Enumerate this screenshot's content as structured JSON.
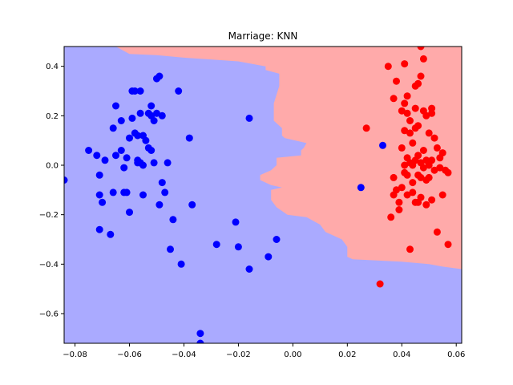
{
  "chart_data": {
    "type": "scatter",
    "title": "Marriage: KNN",
    "xlabel": "",
    "ylabel": "",
    "xlim": [
      -0.084,
      0.062
    ],
    "ylim": [
      -0.72,
      0.48
    ],
    "x_ticks": [
      -0.08,
      -0.06,
      -0.04,
      -0.02,
      0.0,
      0.02,
      0.04,
      0.06
    ],
    "x_tick_labels": [
      "−0.08",
      "−0.06",
      "−0.04",
      "−0.02",
      "0.00",
      "0.02",
      "0.04",
      "0.06"
    ],
    "y_ticks": [
      0.4,
      0.2,
      0.0,
      -0.2,
      -0.4,
      -0.6
    ],
    "y_tick_labels": [
      "0.4",
      "0.2",
      "0.0",
      "−0.2",
      "−0.4",
      "−0.6"
    ],
    "grid": false,
    "legend": "none",
    "colors": {
      "region_blue": "#aaaaff",
      "region_red": "#ffaaaa",
      "point_blue": "#0000ff",
      "point_red": "#ff0000"
    },
    "decision_boundary": [
      [
        -0.065,
        0.48
      ],
      [
        -0.06,
        0.45
      ],
      [
        -0.05,
        0.445
      ],
      [
        -0.04,
        0.435
      ],
      [
        -0.02,
        0.42
      ],
      [
        -0.015,
        0.41
      ],
      [
        -0.01,
        0.4
      ],
      [
        -0.01,
        0.385
      ],
      [
        -0.005,
        0.37
      ],
      [
        -0.005,
        0.32
      ],
      [
        -0.007,
        0.25
      ],
      [
        -0.007,
        0.18
      ],
      [
        -0.004,
        0.15
      ],
      [
        -0.004,
        0.12
      ],
      [
        -0.003,
        0.11
      ],
      [
        0.005,
        0.09
      ],
      [
        0.004,
        0.07
      ],
      [
        0.003,
        0.06
      ],
      [
        0.003,
        0.04
      ],
      [
        -0.006,
        0.03
      ],
      [
        -0.006,
        0.0
      ],
      [
        -0.008,
        -0.02
      ],
      [
        -0.012,
        -0.04
      ],
      [
        -0.012,
        -0.06
      ],
      [
        -0.008,
        -0.08
      ],
      [
        -0.004,
        -0.09
      ],
      [
        -0.008,
        -0.1
      ],
      [
        -0.008,
        -0.14
      ],
      [
        -0.006,
        -0.17
      ],
      [
        -0.002,
        -0.2
      ],
      [
        0.005,
        -0.21
      ],
      [
        0.01,
        -0.24
      ],
      [
        0.012,
        -0.27
      ],
      [
        0.014,
        -0.28
      ],
      [
        0.018,
        -0.3
      ],
      [
        0.02,
        -0.33
      ],
      [
        0.02,
        -0.37
      ],
      [
        0.022,
        -0.38
      ],
      [
        0.04,
        -0.39
      ],
      [
        0.05,
        -0.4
      ],
      [
        0.055,
        -0.41
      ],
      [
        0.062,
        -0.42
      ]
    ],
    "series": [
      {
        "points": [
          [
            -0.084,
            -0.06
          ],
          [
            -0.075,
            0.06
          ],
          [
            -0.072,
            0.04
          ],
          [
            -0.071,
            -0.04
          ],
          [
            -0.071,
            -0.12
          ],
          [
            -0.071,
            -0.26
          ],
          [
            -0.07,
            -0.15
          ],
          [
            -0.069,
            0.02
          ],
          [
            -0.067,
            -0.28
          ],
          [
            -0.066,
            0.15
          ],
          [
            -0.066,
            -0.11
          ],
          [
            -0.065,
            0.24
          ],
          [
            -0.065,
            0.04
          ],
          [
            -0.063,
            0.18
          ],
          [
            -0.063,
            0.06
          ],
          [
            -0.062,
            -0.01
          ],
          [
            -0.062,
            -0.11
          ],
          [
            -0.061,
            -0.11
          ],
          [
            -0.061,
            0.03
          ],
          [
            -0.06,
            0.11
          ],
          [
            -0.06,
            -0.19
          ],
          [
            -0.059,
            0.19
          ],
          [
            -0.059,
            0.3
          ],
          [
            -0.058,
            0.3
          ],
          [
            -0.058,
            0.13
          ],
          [
            -0.057,
            0.12
          ],
          [
            -0.057,
            0.02
          ],
          [
            -0.057,
            0.01
          ],
          [
            -0.056,
            0.3
          ],
          [
            -0.056,
            0.21
          ],
          [
            -0.056,
            0.01
          ],
          [
            -0.055,
            0.12
          ],
          [
            -0.055,
            0.0
          ],
          [
            -0.055,
            -0.12
          ],
          [
            -0.054,
            0.1
          ],
          [
            -0.053,
            0.21
          ],
          [
            -0.053,
            0.07
          ],
          [
            -0.052,
            0.24
          ],
          [
            -0.052,
            0.2
          ],
          [
            -0.052,
            0.06
          ],
          [
            -0.051,
            0.18
          ],
          [
            -0.051,
            0.01
          ],
          [
            -0.05,
            0.35
          ],
          [
            -0.05,
            0.21
          ],
          [
            -0.049,
            0.36
          ],
          [
            -0.049,
            -0.16
          ],
          [
            -0.048,
            0.2
          ],
          [
            -0.048,
            -0.07
          ],
          [
            -0.047,
            -0.11
          ],
          [
            -0.046,
            0.01
          ],
          [
            -0.045,
            -0.34
          ],
          [
            -0.044,
            -0.22
          ],
          [
            -0.042,
            0.3
          ],
          [
            -0.041,
            -0.4
          ],
          [
            -0.038,
            0.11
          ],
          [
            -0.037,
            -0.16
          ],
          [
            -0.034,
            -0.68
          ],
          [
            -0.034,
            -0.72
          ],
          [
            -0.028,
            -0.32
          ],
          [
            -0.021,
            -0.23
          ],
          [
            -0.02,
            -0.33
          ],
          [
            -0.016,
            0.19
          ],
          [
            -0.016,
            -0.42
          ],
          [
            -0.009,
            -0.37
          ],
          [
            -0.006,
            -0.3
          ],
          [
            0.025,
            -0.09
          ],
          [
            0.033,
            0.08
          ]
        ]
      },
      {
        "points": [
          [
            0.027,
            0.15
          ],
          [
            0.032,
            -0.48
          ],
          [
            0.035,
            0.4
          ],
          [
            0.036,
            -0.21
          ],
          [
            0.037,
            0.27
          ],
          [
            0.037,
            -0.05
          ],
          [
            0.037,
            -0.12
          ],
          [
            0.038,
            0.34
          ],
          [
            0.038,
            -0.1
          ],
          [
            0.039,
            -0.18
          ],
          [
            0.039,
            -0.15
          ],
          [
            0.04,
            0.22
          ],
          [
            0.04,
            0.07
          ],
          [
            0.04,
            -0.09
          ],
          [
            0.041,
            0.41
          ],
          [
            0.041,
            0.25
          ],
          [
            0.041,
            0.14
          ],
          [
            0.041,
            0.0
          ],
          [
            0.041,
            -0.03
          ],
          [
            0.042,
            0.28
          ],
          [
            0.042,
            0.21
          ],
          [
            0.042,
            0.03
          ],
          [
            0.042,
            -0.04
          ],
          [
            0.042,
            -0.12
          ],
          [
            0.043,
            0.18
          ],
          [
            0.043,
            0.13
          ],
          [
            0.043,
            0.01
          ],
          [
            0.043,
            -0.34
          ],
          [
            0.044,
            0.09
          ],
          [
            0.044,
            0.0
          ],
          [
            0.044,
            -0.07
          ],
          [
            0.044,
            -0.11
          ],
          [
            0.045,
            0.32
          ],
          [
            0.045,
            0.23
          ],
          [
            0.045,
            0.15
          ],
          [
            0.045,
            0.02
          ],
          [
            0.045,
            -0.15
          ],
          [
            0.046,
            0.33
          ],
          [
            0.046,
            0.16
          ],
          [
            0.046,
            0.04
          ],
          [
            0.046,
            -0.04
          ],
          [
            0.046,
            -0.15
          ],
          [
            0.047,
            0.48
          ],
          [
            0.047,
            0.36
          ],
          [
            0.047,
            0.01
          ],
          [
            0.047,
            -0.05
          ],
          [
            0.047,
            -0.13
          ],
          [
            0.048,
            0.43
          ],
          [
            0.048,
            0.22
          ],
          [
            0.048,
            0.06
          ],
          [
            0.048,
            -0.01
          ],
          [
            0.049,
            0.2
          ],
          [
            0.049,
            0.02
          ],
          [
            0.049,
            -0.06
          ],
          [
            0.049,
            -0.16
          ],
          [
            0.05,
            0.13
          ],
          [
            0.05,
            0.0
          ],
          [
            0.05,
            -0.05
          ],
          [
            0.051,
            0.23
          ],
          [
            0.051,
            0.21
          ],
          [
            0.051,
            0.02
          ],
          [
            0.051,
            -0.14
          ],
          [
            0.052,
            0.11
          ],
          [
            0.052,
            -0.02
          ],
          [
            0.053,
            0.07
          ],
          [
            0.053,
            -0.27
          ],
          [
            0.054,
            0.03
          ],
          [
            0.054,
            -0.01
          ],
          [
            0.055,
            -0.12
          ],
          [
            0.055,
            0.05
          ],
          [
            0.056,
            -0.02
          ],
          [
            0.057,
            -0.03
          ],
          [
            0.057,
            -0.32
          ]
        ]
      }
    ]
  }
}
